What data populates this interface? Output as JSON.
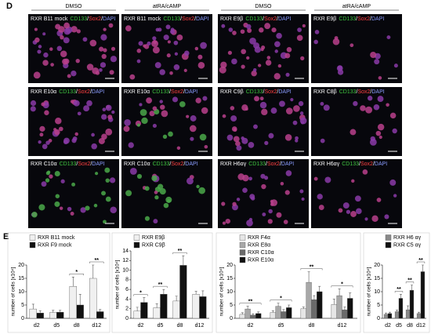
{
  "panel_d": {
    "label": "D",
    "headers": [
      "DMSO",
      "atRA/cAMP",
      "DMSO",
      "atRA/cAMP"
    ],
    "stains": [
      {
        "name": "CD133",
        "color": "#3ec43e"
      },
      {
        "name": "Sox2",
        "color": "#ff4040"
      },
      {
        "name": "DAPI",
        "color": "#8a9cff"
      }
    ],
    "separator": "/",
    "rows": [
      [
        "RXR B11 mock",
        "RXR B11 mock",
        "RXR E9β",
        "RXR E9β"
      ],
      [
        "RXR E10α",
        "RXR E10α",
        "RXR C9β",
        "RXR C8β"
      ],
      [
        "RXR C10α",
        "RXR C10α",
        "RXR H6αγ",
        "RXR H6αγ"
      ]
    ]
  },
  "panel_e": {
    "label": "E"
  },
  "chart_data": [
    {
      "type": "bar",
      "ylabel": "number of cells [x10⁴]",
      "categories": [
        "d2",
        "d5",
        "d8",
        "d12"
      ],
      "ylim": [
        0,
        20
      ],
      "yticks": [
        0,
        5,
        10,
        15,
        20
      ],
      "series": [
        {
          "name": "RXR B11 mock",
          "color": "#f0f0f0",
          "values": [
            3.5,
            2.2,
            12,
            15
          ],
          "errors": [
            1.8,
            0.8,
            3.5,
            5
          ]
        },
        {
          "name": "RXR F9 mock",
          "color": "#111111",
          "values": [
            2,
            2.3,
            5,
            2.5
          ],
          "errors": [
            0.8,
            0.7,
            4,
            0.8
          ]
        }
      ],
      "annotations": [
        {
          "text": "*",
          "category": "d8"
        },
        {
          "text": "**",
          "category": "d12"
        }
      ]
    },
    {
      "type": "bar",
      "ylabel": "number of cells [x10⁴]",
      "categories": [
        "d2",
        "d5",
        "d8",
        "d12"
      ],
      "ylim": [
        0,
        14
      ],
      "yticks": [
        0,
        2,
        4,
        6,
        8,
        10,
        12,
        14
      ],
      "series": [
        {
          "name": "RXR E9β",
          "color": "#f0f0f0",
          "values": [
            1.5,
            2.2,
            3.6,
            5
          ],
          "errors": [
            0.8,
            0.8,
            1,
            0.6
          ]
        },
        {
          "name": "RXR C9β",
          "color": "#111111",
          "values": [
            3.3,
            5,
            11,
            4.5
          ],
          "errors": [
            1,
            1,
            2,
            1.2
          ]
        }
      ],
      "annotations": [
        {
          "text": "*",
          "category": "d2"
        },
        {
          "text": "**",
          "category": "d5"
        },
        {
          "text": "**",
          "category": "d8"
        }
      ]
    },
    {
      "type": "bar",
      "ylabel": "number of cells [x10⁴]",
      "categories": [
        "d2",
        "d5",
        "d8",
        "d12"
      ],
      "ylim": [
        0,
        20
      ],
      "yticks": [
        0,
        5,
        10,
        15,
        20
      ],
      "series": [
        {
          "name": "RXR F4α",
          "color": "#e6e6e6",
          "values": [
            1.5,
            2.2,
            3.6,
            5.2
          ],
          "errors": [
            0.6,
            0.7,
            0.6,
            2
          ]
        },
        {
          "name": "RXR E8α",
          "color": "#a8a8a8",
          "values": [
            3.5,
            4.5,
            13.5,
            8.5
          ],
          "errors": [
            1,
            1.2,
            4,
            2.5
          ]
        },
        {
          "name": "RXR C10α",
          "color": "#6a6a6a",
          "values": [
            1.2,
            2.5,
            7,
            3.2
          ],
          "errors": [
            0.5,
            0.8,
            1.5,
            1
          ]
        },
        {
          "name": "RXR E10α",
          "color": "#111111",
          "values": [
            1.8,
            4,
            10,
            7.5
          ],
          "errors": [
            0.6,
            1,
            2,
            2
          ]
        }
      ],
      "annotations": [
        {
          "text": "**",
          "category": "d2"
        },
        {
          "text": "*",
          "category": "d5"
        },
        {
          "text": "**",
          "category": "d8"
        },
        {
          "text": "*",
          "category": "d12"
        }
      ]
    },
    {
      "type": "bar",
      "ylabel": "number of cells [x10⁴]",
      "categories": [
        "d2",
        "d5",
        "d8",
        "d12"
      ],
      "ylim": [
        0,
        20
      ],
      "yticks": [
        0,
        5,
        10,
        15,
        20
      ],
      "series": [
        {
          "name": "RXR H6 αγ",
          "color": "#8a8a8a",
          "values": [
            1.5,
            2.5,
            3.2,
            1.8
          ],
          "errors": [
            0.5,
            0.6,
            1.5,
            0.5
          ]
        },
        {
          "name": "RXR C5 αγ",
          "color": "#111111",
          "values": [
            1.8,
            7.5,
            10.5,
            17.5
          ],
          "errors": [
            0.5,
            1.5,
            2,
            2.5
          ]
        }
      ],
      "annotations": [
        {
          "text": "**",
          "category": "d5"
        },
        {
          "text": "**",
          "category": "d8"
        },
        {
          "text": "**",
          "category": "d12"
        }
      ]
    }
  ]
}
